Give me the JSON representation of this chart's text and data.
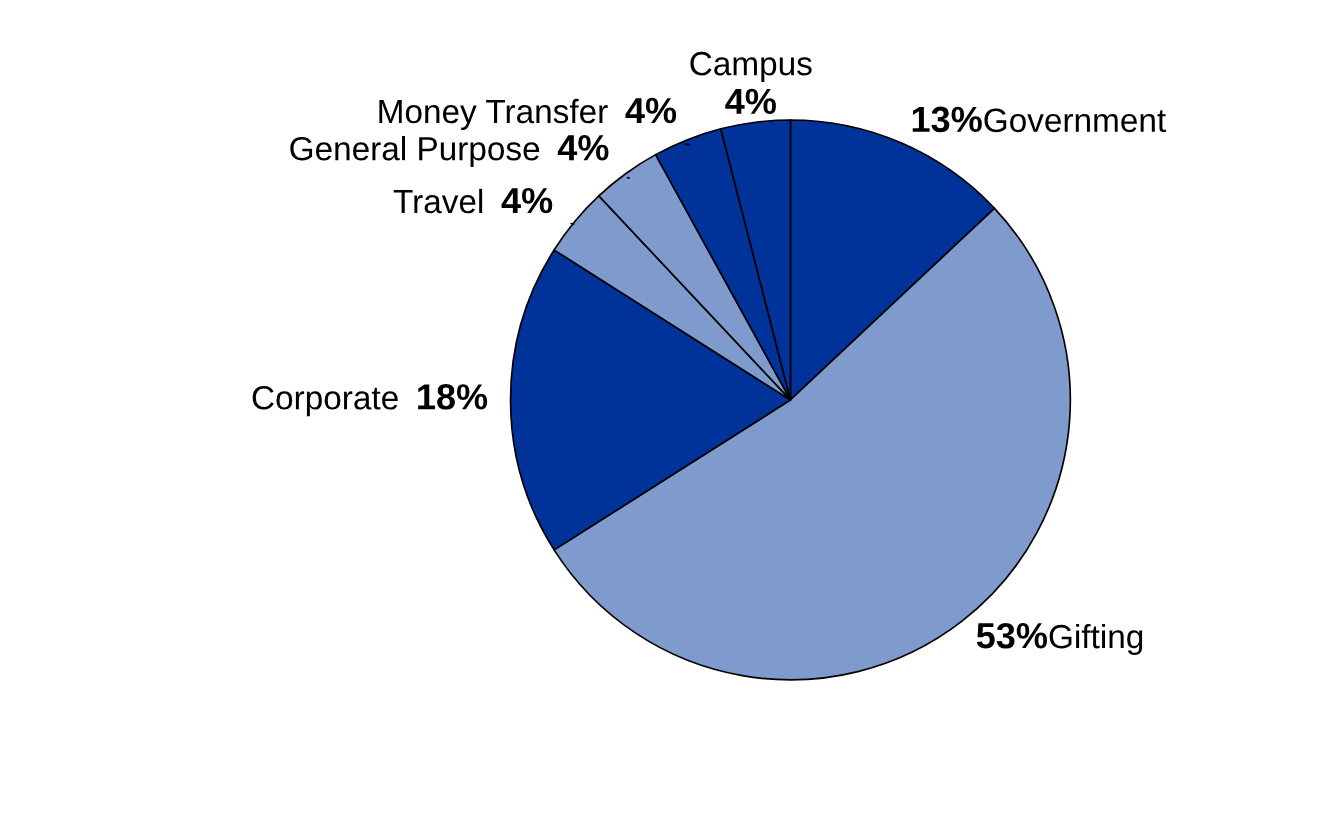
{
  "chart_data": {
    "type": "pie",
    "categories": [
      "Government",
      "Gifting",
      "Corporate",
      "Travel",
      "General Purpose",
      "Money Transfer",
      "Campus"
    ],
    "values": [
      13,
      53,
      18,
      4,
      4,
      4,
      4
    ],
    "value_labels": [
      "13%",
      "53%",
      "18%",
      "4%",
      "4%",
      "4%",
      "4%"
    ],
    "colors": [
      "#003399",
      "#7f9acc",
      "#003399",
      "#7f9acc",
      "#7f9acc",
      "#003399",
      "#003399"
    ],
    "legend": false
  }
}
